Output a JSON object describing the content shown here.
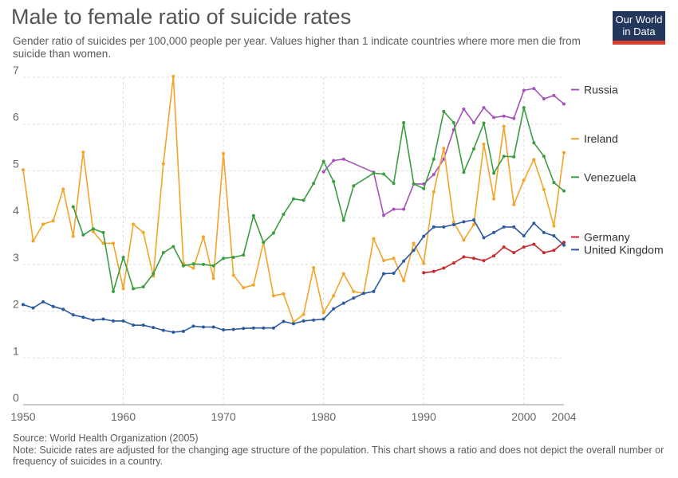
{
  "title": "Male to female ratio of suicide rates",
  "subtitle": "Gender ratio of suicides per 100,000 people per year. Values higher than 1 indicate countries where more men die from suicide than women.",
  "logo": {
    "line1": "Our World",
    "line2": "in Data"
  },
  "source": "Source: World Health Organization (2005)",
  "note": "Note: Suicide rates are adjusted for the changing age structure of the population. This chart shows a ratio and does not depict the overall number or frequency of suicides in a country.",
  "chart_data": {
    "type": "line",
    "title": "Male to female ratio of suicide rates",
    "xlim": [
      1950,
      2004
    ],
    "ylim": [
      0,
      7
    ],
    "x_ticks": [
      1950,
      1960,
      1970,
      1980,
      1990,
      2000,
      2004
    ],
    "y_ticks": [
      0,
      1,
      2,
      3,
      4,
      5,
      6,
      7
    ],
    "grid": true,
    "legend": "right",
    "series": [
      {
        "name": "Russia",
        "color": "#a652ba",
        "points": [
          [
            1980,
            4.98
          ],
          [
            1981,
            5.22
          ],
          [
            1982,
            5.25
          ],
          [
            1985,
            4.97
          ],
          [
            1986,
            4.05
          ],
          [
            1987,
            4.18
          ],
          [
            1988,
            4.18
          ],
          [
            1989,
            4.72
          ],
          [
            1990,
            4.72
          ],
          [
            1991,
            4.92
          ],
          [
            1992,
            5.25
          ],
          [
            1993,
            5.88
          ],
          [
            1994,
            6.32
          ],
          [
            1995,
            6.03
          ],
          [
            1996,
            6.35
          ],
          [
            1997,
            6.14
          ],
          [
            1998,
            6.17
          ],
          [
            1999,
            6.12
          ],
          [
            2000,
            6.72
          ],
          [
            2001,
            6.76
          ],
          [
            2002,
            6.54
          ],
          [
            2003,
            6.61
          ],
          [
            2004,
            6.43
          ]
        ]
      },
      {
        "name": "Ireland",
        "color": "#f2a529",
        "points": [
          [
            1950,
            5.02
          ],
          [
            1951,
            3.5
          ],
          [
            1952,
            3.86
          ],
          [
            1953,
            3.93
          ],
          [
            1954,
            4.61
          ],
          [
            1955,
            3.6
          ],
          [
            1956,
            5.4
          ],
          [
            1957,
            3.7
          ],
          [
            1958,
            3.45
          ],
          [
            1959,
            3.45
          ],
          [
            1960,
            2.48
          ],
          [
            1961,
            3.86
          ],
          [
            1962,
            3.68
          ],
          [
            1963,
            2.75
          ],
          [
            1964,
            5.15
          ],
          [
            1965,
            7.02
          ],
          [
            1966,
            3.02
          ],
          [
            1967,
            2.92
          ],
          [
            1968,
            3.59
          ],
          [
            1969,
            2.7
          ],
          [
            1970,
            5.37
          ],
          [
            1971,
            2.77
          ],
          [
            1972,
            2.5
          ],
          [
            1973,
            2.56
          ],
          [
            1974,
            3.47
          ],
          [
            1975,
            2.33
          ],
          [
            1976,
            2.37
          ],
          [
            1977,
            1.77
          ],
          [
            1978,
            1.93
          ],
          [
            1979,
            2.93
          ],
          [
            1980,
            1.97
          ],
          [
            1981,
            2.33
          ],
          [
            1982,
            2.8
          ],
          [
            1983,
            2.42
          ],
          [
            1984,
            2.38
          ],
          [
            1985,
            3.55
          ],
          [
            1986,
            3.08
          ],
          [
            1987,
            3.13
          ],
          [
            1988,
            2.65
          ],
          [
            1989,
            3.45
          ],
          [
            1990,
            3.02
          ],
          [
            1991,
            4.55
          ],
          [
            1992,
            5.48
          ],
          [
            1993,
            3.9
          ],
          [
            1994,
            3.52
          ],
          [
            1995,
            3.85
          ],
          [
            1996,
            5.57
          ],
          [
            1997,
            4.4
          ],
          [
            1998,
            5.95
          ],
          [
            1999,
            4.28
          ],
          [
            2000,
            4.8
          ],
          [
            2001,
            5.24
          ],
          [
            2002,
            4.6
          ],
          [
            2003,
            3.82
          ],
          [
            2004,
            5.39
          ]
        ]
      },
      {
        "name": "Venezuela",
        "color": "#3a9d3f",
        "points": [
          [
            1955,
            4.23
          ],
          [
            1956,
            3.63
          ],
          [
            1957,
            3.76
          ],
          [
            1958,
            3.68
          ],
          [
            1959,
            2.42
          ],
          [
            1960,
            3.15
          ],
          [
            1961,
            2.48
          ],
          [
            1962,
            2.52
          ],
          [
            1963,
            2.8
          ],
          [
            1964,
            3.25
          ],
          [
            1965,
            3.38
          ],
          [
            1966,
            2.97
          ],
          [
            1967,
            3.01
          ],
          [
            1968,
            3.0
          ],
          [
            1969,
            2.97
          ],
          [
            1970,
            3.13
          ],
          [
            1971,
            3.15
          ],
          [
            1972,
            3.2
          ],
          [
            1973,
            4.04
          ],
          [
            1974,
            3.47
          ],
          [
            1975,
            3.67
          ],
          [
            1976,
            4.07
          ],
          [
            1977,
            4.4
          ],
          [
            1978,
            4.37
          ],
          [
            1979,
            4.73
          ],
          [
            1980,
            5.2
          ],
          [
            1981,
            4.77
          ],
          [
            1982,
            3.94
          ],
          [
            1983,
            4.68
          ],
          [
            1985,
            4.95
          ],
          [
            1986,
            4.93
          ],
          [
            1987,
            4.73
          ],
          [
            1988,
            6.03
          ],
          [
            1989,
            4.72
          ],
          [
            1990,
            4.62
          ],
          [
            1991,
            5.25
          ],
          [
            1992,
            6.27
          ],
          [
            1993,
            6.03
          ],
          [
            1994,
            4.97
          ],
          [
            1995,
            5.47
          ],
          [
            1996,
            6.02
          ],
          [
            1997,
            4.95
          ],
          [
            1998,
            5.31
          ],
          [
            1999,
            5.3
          ],
          [
            2000,
            6.35
          ],
          [
            2001,
            5.6
          ],
          [
            2002,
            5.31
          ],
          [
            2003,
            4.75
          ],
          [
            2004,
            4.57
          ]
        ]
      },
      {
        "name": "Germany",
        "color": "#c8282d",
        "points": [
          [
            1990,
            2.82
          ],
          [
            1991,
            2.85
          ],
          [
            1992,
            2.92
          ],
          [
            1993,
            3.03
          ],
          [
            1994,
            3.16
          ],
          [
            1995,
            3.13
          ],
          [
            1996,
            3.08
          ],
          [
            1997,
            3.18
          ],
          [
            1998,
            3.37
          ],
          [
            1999,
            3.25
          ],
          [
            2000,
            3.37
          ],
          [
            2001,
            3.43
          ],
          [
            2002,
            3.25
          ],
          [
            2003,
            3.3
          ],
          [
            2004,
            3.47
          ]
        ]
      },
      {
        "name": "United Kingdom",
        "color": "#2c5aa0",
        "points": [
          [
            1950,
            2.14
          ],
          [
            1951,
            2.07
          ],
          [
            1952,
            2.2
          ],
          [
            1953,
            2.1
          ],
          [
            1954,
            2.04
          ],
          [
            1955,
            1.92
          ],
          [
            1956,
            1.87
          ],
          [
            1957,
            1.81
          ],
          [
            1958,
            1.83
          ],
          [
            1959,
            1.79
          ],
          [
            1960,
            1.79
          ],
          [
            1961,
            1.7
          ],
          [
            1962,
            1.7
          ],
          [
            1963,
            1.65
          ],
          [
            1964,
            1.59
          ],
          [
            1965,
            1.55
          ],
          [
            1966,
            1.57
          ],
          [
            1967,
            1.68
          ],
          [
            1968,
            1.66
          ],
          [
            1969,
            1.66
          ],
          [
            1970,
            1.6
          ],
          [
            1971,
            1.61
          ],
          [
            1972,
            1.63
          ],
          [
            1973,
            1.64
          ],
          [
            1974,
            1.64
          ],
          [
            1975,
            1.64
          ],
          [
            1976,
            1.78
          ],
          [
            1977,
            1.73
          ],
          [
            1978,
            1.79
          ],
          [
            1979,
            1.81
          ],
          [
            1980,
            1.83
          ],
          [
            1981,
            2.05
          ],
          [
            1982,
            2.17
          ],
          [
            1983,
            2.28
          ],
          [
            1984,
            2.38
          ],
          [
            1985,
            2.42
          ],
          [
            1986,
            2.8
          ],
          [
            1987,
            2.81
          ],
          [
            1988,
            3.07
          ],
          [
            1989,
            3.3
          ],
          [
            1990,
            3.6
          ],
          [
            1991,
            3.8
          ],
          [
            1992,
            3.8
          ],
          [
            1993,
            3.85
          ],
          [
            1994,
            3.91
          ],
          [
            1995,
            3.95
          ],
          [
            1996,
            3.57
          ],
          [
            1997,
            3.68
          ],
          [
            1998,
            3.8
          ],
          [
            1999,
            3.8
          ],
          [
            2000,
            3.61
          ],
          [
            2001,
            3.88
          ],
          [
            2002,
            3.68
          ],
          [
            2003,
            3.61
          ],
          [
            2004,
            3.41
          ]
        ]
      }
    ]
  }
}
